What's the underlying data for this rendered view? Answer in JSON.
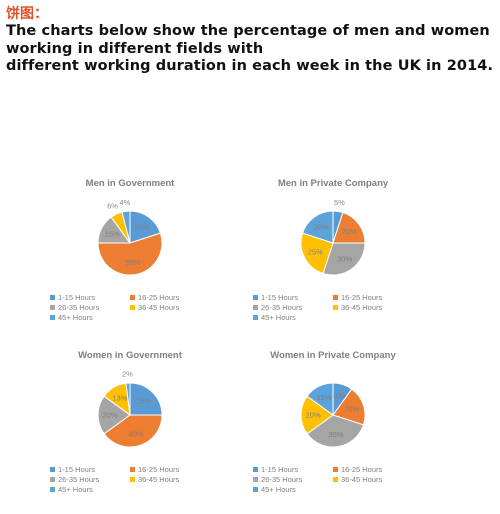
{
  "header": {
    "tag": "饼图：",
    "lines": [
      "The charts below show the percentage of men and women",
      "working in different fields with",
      "different working duration in each week in the UK in 2014."
    ]
  },
  "colors": {
    "1-15 Hours": "#5b9bd5",
    "16-25  Hours": "#ed7d31",
    "26-35 Hours": "#a5a5a5",
    "36-45 Hours": "#ffc000",
    "45+ Hours": "#5ba3d9"
  },
  "chart_data": [
    {
      "type": "pie",
      "title": "Men in Government",
      "categories": [
        "1-15 Hours",
        "16-25  Hours",
        "26-35 Hours",
        "36-45 Hours",
        "45+ Hours"
      ],
      "values": [
        20,
        55,
        15,
        6,
        4
      ],
      "labels": [
        "20%",
        "55%",
        "15%",
        "6%",
        "4%"
      ],
      "legend_position": "bottom"
    },
    {
      "type": "pie",
      "title": "Men in Private Company",
      "categories": [
        "1-15 Hours",
        "16-25  Hours",
        "26-35 Hours",
        "36-45 Hours",
        "45+ Hours"
      ],
      "values": [
        5,
        20,
        30,
        25,
        20
      ],
      "labels": [
        "5%",
        "20%",
        "30%",
        "25%",
        "20%"
      ],
      "legend_position": "bottom"
    },
    {
      "type": "pie",
      "title": "Women in Government",
      "categories": [
        "1-15 Hours",
        "16-25  Hours",
        "26-35 Hours",
        "36-45 Hours",
        "45+ Hours"
      ],
      "values": [
        25,
        40,
        20,
        13,
        2
      ],
      "labels": [
        "25%",
        "40%",
        "20%",
        "13%",
        "2%"
      ],
      "legend_position": "bottom"
    },
    {
      "type": "pie",
      "title": "Women in Private Company",
      "categories": [
        "1-15 Hours",
        "16-25  Hours",
        "26-35 Hours",
        "36-45 Hours",
        "45+ Hours"
      ],
      "values": [
        10,
        20,
        35,
        20,
        15
      ],
      "labels": [
        "10%",
        "20%",
        "35%",
        "20%",
        "15%"
      ],
      "legend_position": "bottom"
    }
  ]
}
